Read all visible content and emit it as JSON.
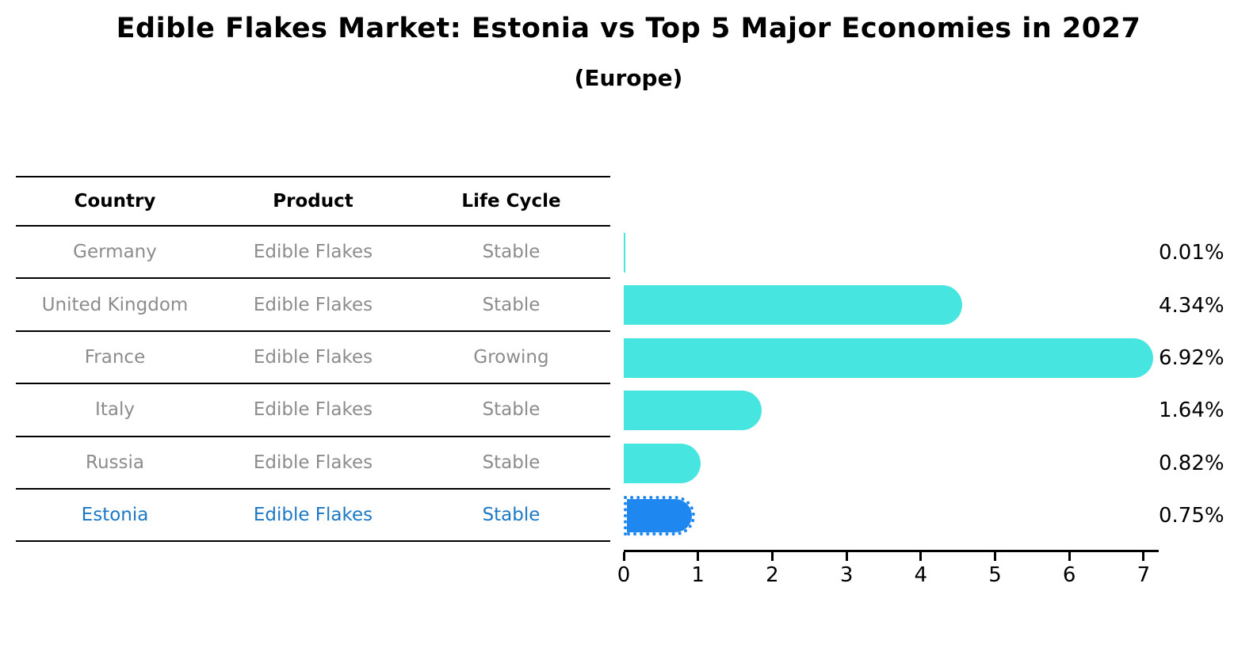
{
  "title": "Edible Flakes Market: Estonia vs Top 5 Major Economies in 2027",
  "subtitle": "(Europe)",
  "table": {
    "headers": [
      "Country",
      "Product",
      "Life Cycle"
    ],
    "rows": [
      {
        "country": "Germany",
        "product": "Edible Flakes",
        "life_cycle": "Stable",
        "highlight": false
      },
      {
        "country": "United Kingdom",
        "product": "Edible Flakes",
        "life_cycle": "Stable",
        "highlight": false
      },
      {
        "country": "France",
        "product": "Edible Flakes",
        "life_cycle": "Growing",
        "highlight": false
      },
      {
        "country": "Italy",
        "product": "Edible Flakes",
        "life_cycle": "Stable",
        "highlight": false
      },
      {
        "country": "Russia",
        "product": "Edible Flakes",
        "life_cycle": "Stable",
        "highlight": false
      },
      {
        "country": "Estonia",
        "product": "Edible Flakes",
        "life_cycle": "Stable",
        "highlight": true
      }
    ]
  },
  "chart_data": {
    "type": "bar",
    "orientation": "horizontal",
    "title": "Edible Flakes Market: Estonia vs Top 5 Major Economies in 2027",
    "subtitle": "(Europe)",
    "categories": [
      "Germany",
      "United Kingdom",
      "France",
      "Italy",
      "Russia",
      "Estonia"
    ],
    "values": [
      0.01,
      4.34,
      6.92,
      1.64,
      0.82,
      0.75
    ],
    "value_labels": [
      "0.01%",
      "4.34%",
      "6.92%",
      "1.64%",
      "0.82%",
      "0.75%"
    ],
    "highlight_index": 5,
    "xlim": [
      0,
      7
    ],
    "x_ticks": [
      "0",
      "1",
      "2",
      "3",
      "4",
      "5",
      "6",
      "7"
    ],
    "grid": false,
    "legend": false
  },
  "colors": {
    "bar": "#46e5e0",
    "highlight_bar": "#1e87f0",
    "highlight_text": "#1b78c4",
    "row_text": "#8c8c8c",
    "axis": "#000000",
    "background": "#ffffff"
  }
}
